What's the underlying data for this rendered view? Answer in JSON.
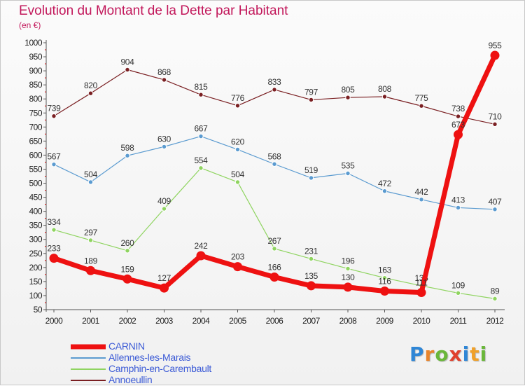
{
  "header": {
    "title": "Evolution du Montant de la Dette par Habitant",
    "unit": "(en €)"
  },
  "logo": {
    "letters": [
      "P",
      "r",
      "o",
      "x",
      "i",
      "t",
      "i"
    ],
    "colors": [
      "#2f86d6",
      "#e8842c",
      "#6ab73a",
      "#e0402c",
      "#2f86d6",
      "#f0a12a",
      "#6ab73a"
    ]
  },
  "chart_data": {
    "type": "line",
    "title": "Evolution du Montant de la Dette par Habitant",
    "subtitle": "(en €)",
    "x": [
      "2000",
      "2001",
      "2002",
      "2003",
      "2004",
      "2005",
      "2006",
      "2007",
      "2008",
      "2009",
      "2010",
      "2011",
      "2012"
    ],
    "ylim": [
      50,
      1000
    ],
    "yticks": [
      50,
      100,
      150,
      200,
      250,
      300,
      350,
      400,
      450,
      500,
      550,
      600,
      650,
      700,
      750,
      800,
      850,
      900,
      950,
      1000
    ],
    "grid": false,
    "legend_position": "bottom-left",
    "series": [
      {
        "name": "Annoeullin",
        "color": "#7a1f22",
        "values": [
          739,
          820,
          904,
          868,
          815,
          776,
          833,
          797,
          805,
          808,
          775,
          738,
          710
        ],
        "labels": [
          "739",
          "820",
          "904",
          "868",
          "815",
          "776",
          "833",
          "797",
          "805",
          "808",
          "775",
          "738",
          "710"
        ]
      },
      {
        "name": "Allennes-les-Marais",
        "color": "#5b9bd0",
        "values": [
          567,
          504,
          598,
          630,
          667,
          620,
          568,
          519,
          535,
          472,
          442,
          413,
          407
        ],
        "labels": [
          "567",
          "504",
          "598",
          "630",
          "667",
          "620",
          "568",
          "519",
          "535",
          "472",
          "442",
          "413",
          "407"
        ]
      },
      {
        "name": "Camphin-en-Carembault",
        "color": "#8fd460",
        "values": [
          334,
          297,
          260,
          409,
          554,
          504,
          267,
          231,
          196,
          163,
          135,
          109,
          89
        ],
        "labels": [
          "334",
          "297",
          "260",
          "409",
          "554",
          "504",
          "267",
          "231",
          "196",
          "163",
          "135",
          "109",
          "89"
        ]
      },
      {
        "name": "CARNIN",
        "color": "#ee1111",
        "values": [
          233,
          189,
          159,
          127,
          242,
          203,
          166,
          135,
          130,
          116,
          111,
          673,
          955
        ],
        "labels": [
          "233",
          "189",
          "159",
          "127",
          "242",
          "203",
          "166",
          "135",
          "130",
          "116",
          "111",
          "673",
          "955"
        ]
      }
    ]
  }
}
